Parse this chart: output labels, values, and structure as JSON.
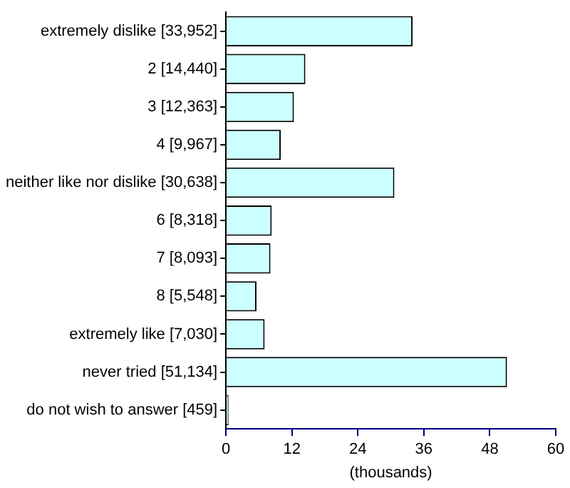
{
  "chart_data": {
    "type": "bar",
    "orientation": "horizontal",
    "categories": [
      "extremely dislike [33,952]",
      "2 [14,440]",
      "3 [12,363]",
      "4 [9,967]",
      "neither like nor dislike [30,638]",
      "6 [8,318]",
      "7 [8,093]",
      "8 [5,548]",
      "extremely like [7,030]",
      "never tried [51,134]",
      "do not wish to answer [459]"
    ],
    "values": [
      33.952,
      14.44,
      12.363,
      9.967,
      30.638,
      8.318,
      8.093,
      5.548,
      7.03,
      51.134,
      0.459
    ],
    "color": "#ccffff",
    "xlabel": "(thousands)",
    "xlim": [
      0,
      60
    ],
    "xticks": [
      0,
      12,
      24,
      36,
      48,
      60
    ],
    "grid": false,
    "legend": false
  }
}
